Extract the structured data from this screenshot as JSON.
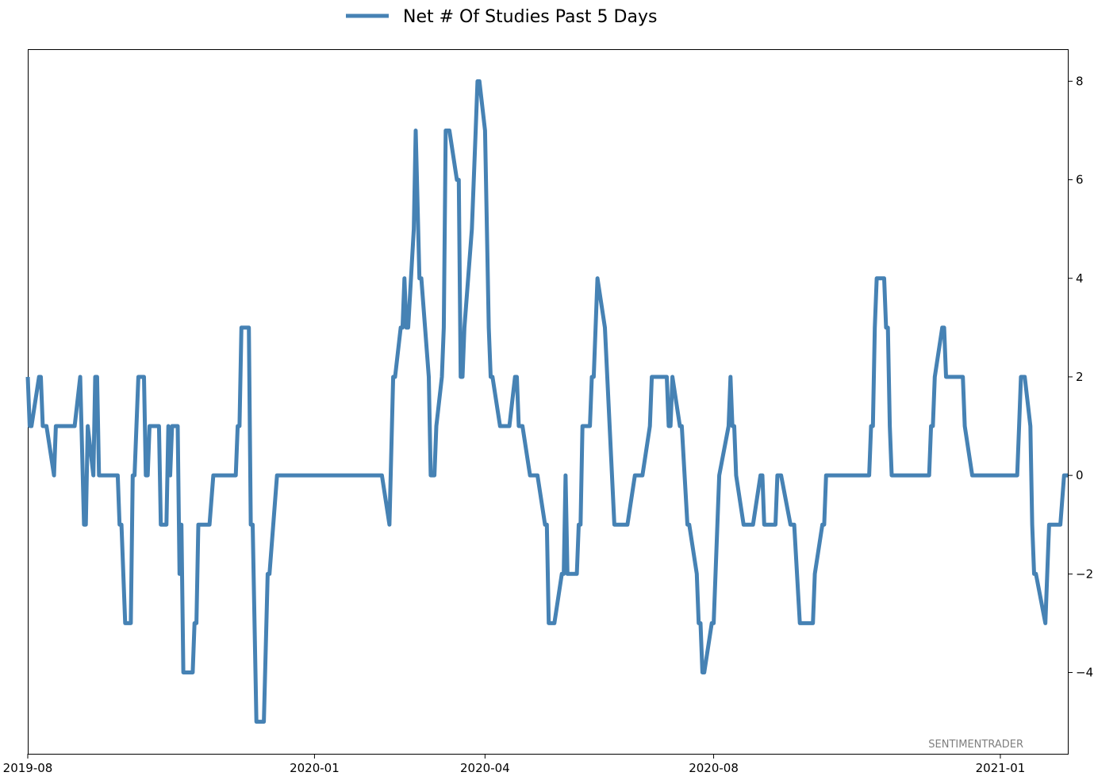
{
  "chart_data": {
    "type": "line",
    "series": [
      {
        "name": "Net # Of Studies Past 5 Days",
        "color": "#4682b4",
        "points": [
          [
            "2019-08-01",
            2
          ],
          [
            "2019-08-02",
            1
          ],
          [
            "2019-08-03",
            1
          ],
          [
            "2019-08-07",
            2
          ],
          [
            "2019-08-08",
            2
          ],
          [
            "2019-08-09",
            1
          ],
          [
            "2019-08-11",
            1
          ],
          [
            "2019-08-15",
            0
          ],
          [
            "2019-08-16",
            1
          ],
          [
            "2019-08-26",
            1
          ],
          [
            "2019-08-29",
            2
          ],
          [
            "2019-08-31",
            -1
          ],
          [
            "2019-09-01",
            -1
          ],
          [
            "2019-09-02",
            1
          ],
          [
            "2019-09-05",
            0
          ],
          [
            "2019-09-06",
            2
          ],
          [
            "2019-09-07",
            2
          ],
          [
            "2019-09-08",
            0
          ],
          [
            "2019-09-18",
            0
          ],
          [
            "2019-09-19",
            -1
          ],
          [
            "2019-09-20",
            -1
          ],
          [
            "2019-09-22",
            -3
          ],
          [
            "2019-09-25",
            -3
          ],
          [
            "2019-09-26",
            0
          ],
          [
            "2019-09-27",
            0
          ],
          [
            "2019-09-29",
            2
          ],
          [
            "2019-10-02",
            2
          ],
          [
            "2019-10-03",
            0
          ],
          [
            "2019-10-04",
            0
          ],
          [
            "2019-10-05",
            1
          ],
          [
            "2019-10-10",
            1
          ],
          [
            "2019-10-11",
            -1
          ],
          [
            "2019-10-14",
            -1
          ],
          [
            "2019-10-15",
            1
          ],
          [
            "2019-10-16",
            0
          ],
          [
            "2019-10-17",
            1
          ],
          [
            "2019-10-20",
            1
          ],
          [
            "2019-10-21",
            -2
          ],
          [
            "2019-10-22",
            -1
          ],
          [
            "2019-10-23",
            -4
          ],
          [
            "2019-10-28",
            -4
          ],
          [
            "2019-10-29",
            -3
          ],
          [
            "2019-10-30",
            -3
          ],
          [
            "2019-10-31",
            -1
          ],
          [
            "2019-11-06",
            -1
          ],
          [
            "2019-11-08",
            0
          ],
          [
            "2019-11-20",
            0
          ],
          [
            "2019-11-21",
            1
          ],
          [
            "2019-11-22",
            1
          ],
          [
            "2019-11-23",
            3
          ],
          [
            "2019-11-27",
            3
          ],
          [
            "2019-11-28",
            -1
          ],
          [
            "2019-11-29",
            -1
          ],
          [
            "2019-12-01",
            -5
          ],
          [
            "2019-12-05",
            -5
          ],
          [
            "2019-12-07",
            -2
          ],
          [
            "2019-12-08",
            -2
          ],
          [
            "2019-12-12",
            0
          ],
          [
            "2020-02-06",
            0
          ],
          [
            "2020-02-10",
            -1
          ],
          [
            "2020-02-12",
            2
          ],
          [
            "2020-02-13",
            2
          ],
          [
            "2020-02-16",
            3
          ],
          [
            "2020-02-17",
            3
          ],
          [
            "2020-02-18",
            4
          ],
          [
            "2020-02-19",
            3
          ],
          [
            "2020-02-20",
            3
          ],
          [
            "2020-02-23",
            5
          ],
          [
            "2020-02-24",
            7
          ],
          [
            "2020-02-26",
            4
          ],
          [
            "2020-02-27",
            4
          ],
          [
            "2020-03-02",
            2
          ],
          [
            "2020-03-03",
            0
          ],
          [
            "2020-03-05",
            0
          ],
          [
            "2020-03-06",
            1
          ],
          [
            "2020-03-09",
            2
          ],
          [
            "2020-03-10",
            3
          ],
          [
            "2020-03-11",
            7
          ],
          [
            "2020-03-13",
            7
          ],
          [
            "2020-03-17",
            6
          ],
          [
            "2020-03-18",
            6
          ],
          [
            "2020-03-19",
            2
          ],
          [
            "2020-03-20",
            2
          ],
          [
            "2020-03-21",
            3
          ],
          [
            "2020-03-25",
            5
          ],
          [
            "2020-03-27",
            7
          ],
          [
            "2020-03-28",
            8
          ],
          [
            "2020-03-29",
            8
          ],
          [
            "2020-04-01",
            7
          ],
          [
            "2020-04-03",
            3
          ],
          [
            "2020-04-04",
            2
          ],
          [
            "2020-04-05",
            2
          ],
          [
            "2020-04-09",
            1
          ],
          [
            "2020-04-14",
            1
          ],
          [
            "2020-04-17",
            2
          ],
          [
            "2020-04-18",
            2
          ],
          [
            "2020-04-19",
            1
          ],
          [
            "2020-04-21",
            1
          ],
          [
            "2020-04-25",
            0
          ],
          [
            "2020-04-29",
            0
          ],
          [
            "2020-05-03",
            -1
          ],
          [
            "2020-05-04",
            -1
          ],
          [
            "2020-05-05",
            -3
          ],
          [
            "2020-05-08",
            -3
          ],
          [
            "2020-05-12",
            -2
          ],
          [
            "2020-05-13",
            -2
          ],
          [
            "2020-05-14",
            0
          ],
          [
            "2020-05-15",
            -2
          ],
          [
            "2020-05-20",
            -2
          ],
          [
            "2020-05-21",
            -1
          ],
          [
            "2020-05-22",
            -1
          ],
          [
            "2020-05-23",
            1
          ],
          [
            "2020-05-27",
            1
          ],
          [
            "2020-05-28",
            2
          ],
          [
            "2020-05-29",
            2
          ],
          [
            "2020-05-31",
            4
          ],
          [
            "2020-06-04",
            3
          ],
          [
            "2020-06-09",
            -1
          ],
          [
            "2020-06-16",
            -1
          ],
          [
            "2020-06-20",
            0
          ],
          [
            "2020-06-24",
            0
          ],
          [
            "2020-06-28",
            1
          ],
          [
            "2020-06-29",
            2
          ],
          [
            "2020-07-07",
            2
          ],
          [
            "2020-07-08",
            1
          ],
          [
            "2020-07-09",
            1
          ],
          [
            "2020-07-10",
            2
          ],
          [
            "2020-07-14",
            1
          ],
          [
            "2020-07-15",
            1
          ],
          [
            "2020-07-18",
            -1
          ],
          [
            "2020-07-19",
            -1
          ],
          [
            "2020-07-23",
            -2
          ],
          [
            "2020-07-24",
            -3
          ],
          [
            "2020-07-25",
            -3
          ],
          [
            "2020-07-26",
            -4
          ],
          [
            "2020-07-27",
            -4
          ],
          [
            "2020-07-31",
            -3
          ],
          [
            "2020-08-01",
            -3
          ],
          [
            "2020-08-04",
            0
          ],
          [
            "2020-08-09",
            1
          ],
          [
            "2020-08-10",
            2
          ],
          [
            "2020-08-11",
            1
          ],
          [
            "2020-08-12",
            1
          ],
          [
            "2020-08-13",
            0
          ],
          [
            "2020-08-17",
            -1
          ],
          [
            "2020-08-22",
            -1
          ],
          [
            "2020-08-26",
            0
          ],
          [
            "2020-08-27",
            0
          ],
          [
            "2020-08-28",
            -1
          ],
          [
            "2020-09-03",
            -1
          ],
          [
            "2020-09-04",
            0
          ],
          [
            "2020-09-06",
            0
          ],
          [
            "2020-09-11",
            -1
          ],
          [
            "2020-09-13",
            -1
          ],
          [
            "2020-09-16",
            -3
          ],
          [
            "2020-09-23",
            -3
          ],
          [
            "2020-09-24",
            -2
          ],
          [
            "2020-09-28",
            -1
          ],
          [
            "2020-09-29",
            -1
          ],
          [
            "2020-09-30",
            0
          ],
          [
            "2020-10-23",
            0
          ],
          [
            "2020-10-24",
            1
          ],
          [
            "2020-10-25",
            1
          ],
          [
            "2020-10-26",
            3
          ],
          [
            "2020-10-27",
            4
          ],
          [
            "2020-10-31",
            4
          ],
          [
            "2020-11-01",
            3
          ],
          [
            "2020-11-02",
            3
          ],
          [
            "2020-11-03",
            1
          ],
          [
            "2020-11-04",
            0
          ],
          [
            "2020-11-24",
            0
          ],
          [
            "2020-11-25",
            1
          ],
          [
            "2020-11-26",
            1
          ],
          [
            "2020-11-27",
            2
          ],
          [
            "2020-12-01",
            3
          ],
          [
            "2020-12-02",
            3
          ],
          [
            "2020-12-03",
            2
          ],
          [
            "2020-12-12",
            2
          ],
          [
            "2020-12-13",
            1
          ],
          [
            "2020-12-17",
            0
          ],
          [
            "2020-12-28",
            0
          ],
          [
            "2021-01-10",
            0
          ],
          [
            "2021-01-11",
            1
          ],
          [
            "2021-01-12",
            2
          ],
          [
            "2021-01-14",
            2
          ],
          [
            "2021-01-17",
            1
          ],
          [
            "2021-01-18",
            -1
          ],
          [
            "2021-01-19",
            -2
          ],
          [
            "2021-01-20",
            -2
          ],
          [
            "2021-01-25",
            -3
          ],
          [
            "2021-01-27",
            -1
          ],
          [
            "2021-02-01",
            -1
          ],
          [
            "2021-02-02",
            -1
          ],
          [
            "2021-02-04",
            0
          ],
          [
            "2021-02-06",
            0
          ]
        ]
      }
    ],
    "x_ticks": [
      "2019-08",
      "2020-01",
      "2020-04",
      "2020-08",
      "2021-01"
    ],
    "y_ticks": [
      -4,
      -2,
      0,
      2,
      4,
      6,
      8
    ],
    "xlim": [
      "2019-08-01",
      "2021-02-06"
    ],
    "ylim": [
      -5.65,
      8.65
    ],
    "y_axis_side": "right",
    "grid": false,
    "legend_position": "top-center",
    "watermark": "SENTIMENTRADER"
  }
}
